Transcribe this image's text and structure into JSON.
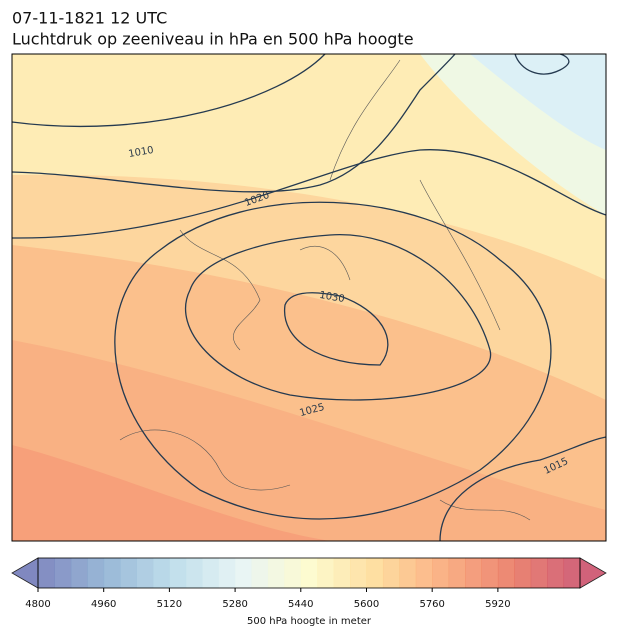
{
  "title": "07-11-1821 12 UTC",
  "subtitle": "Luchtdruk op zeeniveau in hPa en 500 hPa hoogte",
  "map": {
    "contour_labels": [
      "1010",
      "1020",
      "1030",
      "1025",
      "1015"
    ]
  },
  "colorbar": {
    "label": "500 hPa hoogte in meter",
    "lim": [
      4800,
      6120
    ],
    "step": 40,
    "ticks": [
      4800,
      4960,
      5120,
      5280,
      5440,
      5600,
      5760,
      5920
    ],
    "colormap": [
      "#6b74b6",
      "#88acd0",
      "#b5d9e8",
      "#e4f3f3",
      "#fdfac8",
      "#fed890",
      "#f9a370",
      "#e8705a",
      "#c94763"
    ]
  }
}
